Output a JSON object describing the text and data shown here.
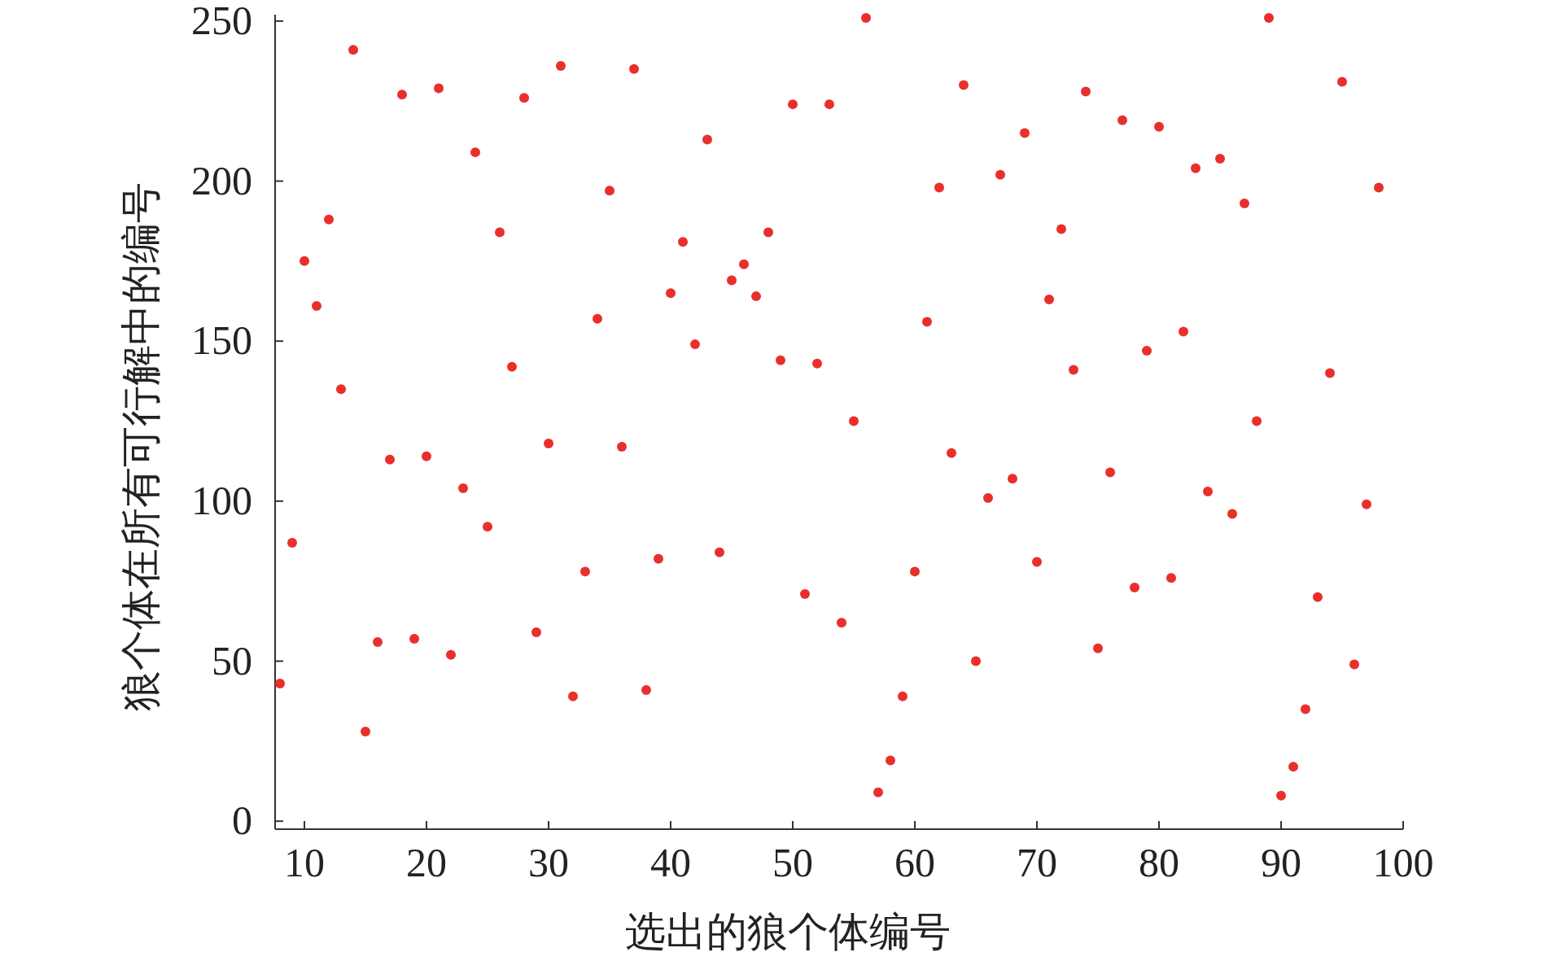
{
  "chart_data": {
    "type": "scatter",
    "xlabel": "选出的狼个体编号",
    "ylabel": "狼个体在所有可行解中的编号",
    "x": [
      8,
      9,
      10,
      11,
      12,
      13,
      14,
      15,
      16,
      17,
      18,
      19,
      20,
      21,
      22,
      23,
      24,
      25,
      26,
      27,
      28,
      29,
      30,
      31,
      32,
      33,
      34,
      35,
      36,
      37,
      38,
      39,
      40,
      41,
      42,
      43,
      44,
      45,
      46,
      47,
      48,
      49,
      50,
      51,
      52,
      53,
      54,
      55,
      56,
      57,
      58,
      59,
      60,
      61,
      62,
      63,
      64,
      65,
      66,
      67,
      68,
      69,
      70,
      71,
      72,
      73,
      74,
      75,
      76,
      77,
      78,
      79,
      80,
      81,
      82,
      83,
      84,
      85,
      86,
      87,
      88,
      89,
      90,
      91,
      92,
      93,
      94,
      95,
      96,
      97,
      98
    ],
    "series": [
      {
        "color": "#e8302a",
        "values": [
          43,
          87,
          175,
          161,
          188,
          135,
          241,
          28,
          56,
          113,
          227,
          57,
          114,
          229,
          52,
          104,
          209,
          92,
          184,
          142,
          226,
          59,
          118,
          236,
          39,
          78,
          157,
          197,
          117,
          235,
          41,
          82,
          165,
          181,
          149,
          213,
          84,
          169,
          174,
          164,
          184,
          144,
          224,
          71,
          143,
          224,
          62,
          125,
          251,
          9,
          19,
          39,
          78,
          156,
          198,
          115,
          230,
          50,
          101,
          202,
          107,
          215,
          81,
          163,
          185,
          141,
          228,
          54,
          109,
          219,
          73,
          147,
          217,
          76,
          153,
          204,
          103,
          207,
          96,
          193,
          125,
          251,
          8,
          17,
          35,
          70,
          140,
          231,
          49,
          99,
          198
        ]
      }
    ],
    "xlim": [
      7.6,
      100
    ],
    "ylim": [
      -2.5,
      252
    ],
    "xticks": [
      10,
      20,
      30,
      40,
      50,
      60,
      70,
      80,
      90,
      100
    ],
    "yticks": [
      0,
      50,
      100,
      150,
      200,
      250
    ],
    "marker": "circle",
    "grid": false
  }
}
